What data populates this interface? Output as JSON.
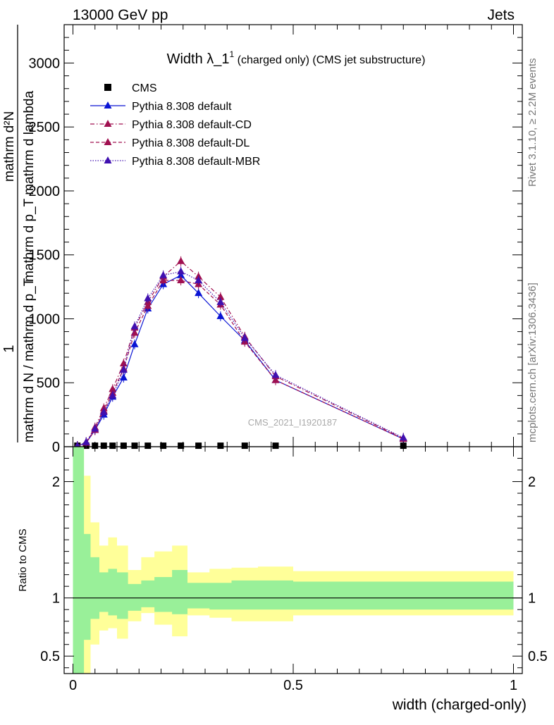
{
  "header": {
    "energy_label": "13000 GeV pp",
    "process_label": "Jets",
    "rivet_label": "Rivet 3.1.10, ≥ 2.2M events",
    "mcplots_label": "mcplots.cern.ch [arXiv:1306.3436]",
    "analysis_label": "CMS_2021_I1920187"
  },
  "chart_data": [
    {
      "type": "line",
      "title_main": "Width λ_1",
      "title_sup": "1",
      "title_rest": " (charged only) (CMS jet substructure)",
      "ylabel_numerator": "mathrm d²N",
      "ylabel_denominator": "mathrm d p_T mathrm d lambda",
      "ylabel_frac_num": "1",
      "ylabel_frac_den": "mathrm d N / mathrm d p_T",
      "xlabel": "width (charged-only)",
      "xlim": [
        -0.02,
        1.02
      ],
      "ylim": [
        0,
        3300
      ],
      "yticks": [
        0,
        500,
        1000,
        1500,
        2000,
        2500,
        3000
      ],
      "ytick_labels": [
        "0",
        "500",
        "1000",
        "1500",
        "2000",
        "2500",
        "3000"
      ],
      "xticks": [
        0,
        0.5,
        1
      ],
      "xtick_labels": [
        "0",
        "0.5",
        "1"
      ],
      "legend_position": "top-left",
      "x": [
        0.01,
        0.03,
        0.05,
        0.07,
        0.09,
        0.115,
        0.14,
        0.17,
        0.205,
        0.245,
        0.285,
        0.335,
        0.39,
        0.46,
        0.75
      ],
      "series": [
        {
          "name": "CMS",
          "marker": "square",
          "color": "#000000",
          "values": [
            5,
            5,
            5,
            5,
            5,
            5,
            5,
            5,
            5,
            5,
            5,
            5,
            5,
            5,
            5
          ]
        },
        {
          "name": "Pythia 8.308 default",
          "marker": "triangle",
          "line": "solid",
          "color": "#0a14d4",
          "values": [
            5,
            30,
            130,
            250,
            390,
            540,
            800,
            1080,
            1270,
            1340,
            1200,
            1020,
            830,
            520,
            60
          ]
        },
        {
          "name": "Pythia 8.308 default-CD",
          "marker": "triangle",
          "line": "dashdot",
          "color": "#a01050",
          "values": [
            5,
            35,
            150,
            300,
            450,
            650,
            930,
            1130,
            1330,
            1450,
            1330,
            1170,
            860,
            550,
            65
          ]
        },
        {
          "name": "Pythia 8.308 default-DL",
          "marker": "triangle",
          "line": "dashed",
          "color": "#a01050",
          "values": [
            5,
            30,
            130,
            280,
            420,
            610,
            890,
            1100,
            1300,
            1300,
            1270,
            1110,
            820,
            520,
            60
          ]
        },
        {
          "name": "Pythia 8.308 default-MBR",
          "marker": "triangle",
          "line": "dotted",
          "color": "#4010b0",
          "values": [
            5,
            35,
            140,
            270,
            400,
            600,
            940,
            1160,
            1340,
            1370,
            1300,
            1130,
            850,
            560,
            70
          ]
        }
      ]
    },
    {
      "type": "area",
      "ylabel": "Ratio to CMS",
      "xlim": [
        -0.02,
        1.02
      ],
      "ylim": [
        0.35,
        2.3
      ],
      "yticks": [
        0.5,
        1,
        2
      ],
      "ytick_labels": [
        "0.5",
        "1",
        "2"
      ],
      "reference_line": 1,
      "bin_edges": [
        0,
        0.025,
        0.04,
        0.06,
        0.08,
        0.1,
        0.125,
        0.155,
        0.185,
        0.225,
        0.26,
        0.31,
        0.36,
        0.42,
        0.5,
        1.0
      ],
      "inner_band_color": "#99f099",
      "outer_band_color": "#ffff99",
      "inner_band": {
        "upper": [
          2.3,
          1.55,
          1.35,
          1.22,
          1.25,
          1.22,
          1.12,
          1.15,
          1.18,
          1.24,
          1.13,
          1.13,
          1.15,
          1.15,
          1.14,
          1.13
        ],
        "lower": [
          0.35,
          0.64,
          0.82,
          0.88,
          0.85,
          0.82,
          0.89,
          0.92,
          0.88,
          0.86,
          0.91,
          0.9,
          0.9,
          0.9,
          0.9,
          0.9
        ]
      },
      "outer_band": {
        "upper": [
          2.3,
          2.05,
          1.65,
          1.45,
          1.52,
          1.45,
          1.24,
          1.35,
          1.4,
          1.45,
          1.22,
          1.25,
          1.26,
          1.27,
          1.23,
          1.23
        ],
        "lower": [
          0.35,
          0.35,
          0.6,
          0.72,
          0.74,
          0.65,
          0.8,
          0.87,
          0.77,
          0.67,
          0.85,
          0.83,
          0.8,
          0.8,
          0.85,
          0.85
        ]
      }
    }
  ]
}
